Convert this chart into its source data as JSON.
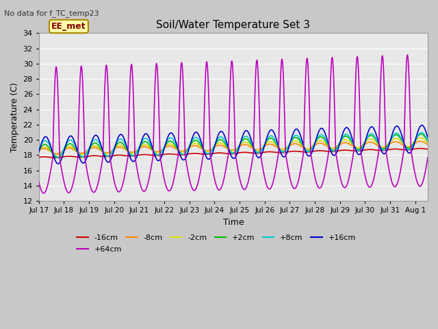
{
  "title": "Soil/Water Temperature Set 3",
  "xlabel": "Time",
  "ylabel": "Temperature (C)",
  "note": "No data for f_TC_temp23",
  "label_box": "EE_met",
  "ylim": [
    12,
    34
  ],
  "yticks": [
    12,
    14,
    16,
    18,
    20,
    22,
    24,
    26,
    28,
    30,
    32,
    34
  ],
  "fig_bg": "#c8c8c8",
  "plot_bg": "#e8e8e8",
  "grid_color": "#ffffff",
  "series": [
    {
      "label": "-16cm",
      "color": "#cc0000"
    },
    {
      "label": "-8cm",
      "color": "#ff8800"
    },
    {
      "label": "-2cm",
      "color": "#dddd00"
    },
    {
      "label": "+2cm",
      "color": "#00bb00"
    },
    {
      "label": "+8cm",
      "color": "#00cccc"
    },
    {
      "label": "+16cm",
      "color": "#0000cc"
    },
    {
      "label": "+64cm",
      "color": "#bb00bb"
    }
  ],
  "tick_labels": [
    "Jul 17",
    "Jul 18",
    "Jul 19",
    "Jul 20",
    "Jul 21",
    "Jul 22",
    "Jul 23",
    "Jul 24",
    "Jul 25",
    "Jul 26",
    "Jul 27",
    "Jul 28",
    "Jul 29",
    "Jul 30",
    "Jul 31",
    "Aug 1"
  ]
}
